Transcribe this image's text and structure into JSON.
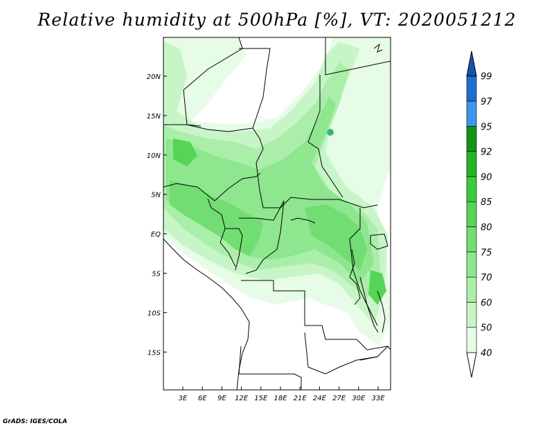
{
  "title": "Relative humidity at 500hPa [%], VT: 2020051212",
  "credit": "GrADS: IGES/COLA",
  "map": {
    "lat_ticks": [
      "20N",
      "15N",
      "10N",
      "5N",
      "EQ",
      "5S",
      "10S",
      "15S"
    ],
    "lon_ticks": [
      "3E",
      "6E",
      "9E",
      "12E",
      "15E",
      "18E",
      "21E",
      "24E",
      "27E",
      "30E",
      "33E"
    ]
  },
  "colorbar": {
    "levels": [
      "40",
      "50",
      "60",
      "70",
      "75",
      "80",
      "85",
      "90",
      "92",
      "95",
      "97",
      "99"
    ],
    "colors": [
      "#ffffff",
      "#e6fce6",
      "#c8f5c8",
      "#aaeeaa",
      "#8ee68e",
      "#72dd72",
      "#56d456",
      "#3ccb3c",
      "#23b523",
      "#139513",
      "#3c96ec",
      "#1e6ed2",
      "#1454aa"
    ]
  }
}
